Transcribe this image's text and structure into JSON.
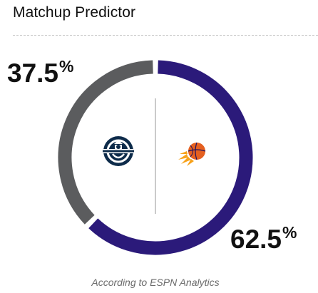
{
  "widget": {
    "title": "Matchup Predictor",
    "footer": "According to ESPN Analytics"
  },
  "chart_data": {
    "type": "pie",
    "style": "donut",
    "slices": [
      {
        "team": "away",
        "label": "37.5",
        "value": 37.5,
        "color": "#5b5c5e"
      },
      {
        "team": "home",
        "label": "62.5",
        "value": 62.5,
        "color": "#2b1a7a"
      }
    ],
    "unit": "%"
  },
  "logos": {
    "left": {
      "icon": "seattle-kraken-style-logo",
      "color": "#0d2b4a"
    },
    "right": {
      "icon": "phoenix-suns-logo",
      "color": "#e56020"
    }
  }
}
